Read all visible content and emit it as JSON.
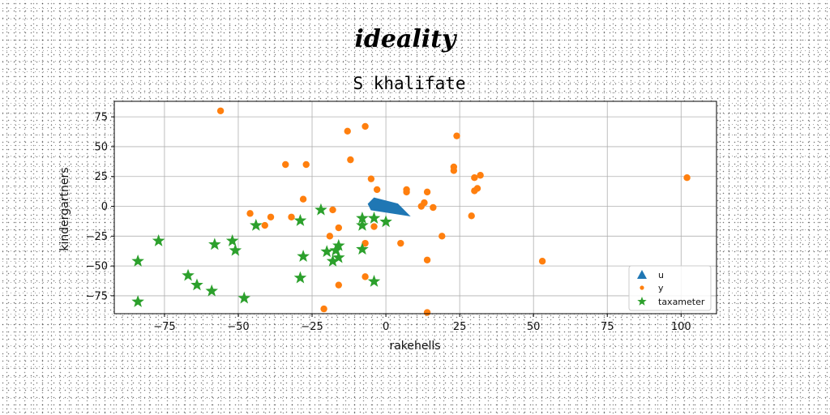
{
  "chart_data": {
    "type": "scatter",
    "supertitle": "ideality",
    "title": "S khalifate",
    "xlabel": "rakehells",
    "ylabel": "kindergartners",
    "xlim": [
      -92,
      112
    ],
    "ylim": [
      -90,
      88
    ],
    "xticks": [
      -75,
      -50,
      -25,
      0,
      25,
      50,
      75,
      100
    ],
    "yticks": [
      -75,
      -50,
      -25,
      0,
      25,
      50,
      75
    ],
    "grid": true,
    "legend_position": "lower right",
    "colors": {
      "u": "#1f77b4",
      "y": "#ff7f0e",
      "taxameter": "#2ca02c"
    },
    "series": [
      {
        "name": "u",
        "marker": "triangle",
        "polygon": [
          [
            -4,
            7
          ],
          [
            -6,
            2
          ],
          [
            -5,
            -3
          ],
          [
            8,
            -8
          ],
          [
            4,
            2
          ]
        ]
      },
      {
        "name": "y",
        "marker": "circle",
        "points": [
          [
            -56,
            80
          ],
          [
            -7,
            67
          ],
          [
            -13,
            63
          ],
          [
            24,
            59
          ],
          [
            -12,
            39
          ],
          [
            -34,
            35
          ],
          [
            -27,
            35
          ],
          [
            23,
            33
          ],
          [
            23,
            30
          ],
          [
            32,
            26
          ],
          [
            30,
            24
          ],
          [
            102,
            24
          ],
          [
            -5,
            23
          ],
          [
            31,
            15
          ],
          [
            30,
            13
          ],
          [
            -3,
            14
          ],
          [
            7,
            14
          ],
          [
            7,
            12
          ],
          [
            14,
            12
          ],
          [
            -28,
            6
          ],
          [
            13,
            3
          ],
          [
            12,
            0
          ],
          [
            16,
            -1
          ],
          [
            -18,
            -3
          ],
          [
            -46,
            -6
          ],
          [
            -39,
            -9
          ],
          [
            -32,
            -9
          ],
          [
            29,
            -8
          ],
          [
            -41,
            -16
          ],
          [
            -4,
            -17
          ],
          [
            -16,
            -18
          ],
          [
            19,
            -25
          ],
          [
            -19,
            -25
          ],
          [
            -7,
            -31
          ],
          [
            5,
            -31
          ],
          [
            53,
            -46
          ],
          [
            14,
            -45
          ],
          [
            -7,
            -59
          ],
          [
            -16,
            -66
          ],
          [
            -21,
            -86
          ],
          [
            14,
            -89
          ]
        ]
      },
      {
        "name": "taxameter",
        "marker": "star",
        "points": [
          [
            -77,
            -29
          ],
          [
            -58,
            -32
          ],
          [
            -52,
            -29
          ],
          [
            -51,
            -37
          ],
          [
            -44,
            -16
          ],
          [
            -29,
            -12
          ],
          [
            -22,
            -3
          ],
          [
            -28,
            -42
          ],
          [
            -20,
            -38
          ],
          [
            -16,
            -33
          ],
          [
            -17,
            -37
          ],
          [
            -18,
            -46
          ],
          [
            -16,
            -43
          ],
          [
            -8,
            -10
          ],
          [
            -8,
            -16
          ],
          [
            -4,
            -10
          ],
          [
            0,
            -13
          ],
          [
            -8,
            -36
          ],
          [
            -29,
            -60
          ],
          [
            -84,
            -46
          ],
          [
            -67,
            -58
          ],
          [
            -64,
            -66
          ],
          [
            -59,
            -71
          ],
          [
            -48,
            -77
          ],
          [
            -84,
            -80
          ],
          [
            -4,
            -63
          ]
        ]
      }
    ]
  }
}
